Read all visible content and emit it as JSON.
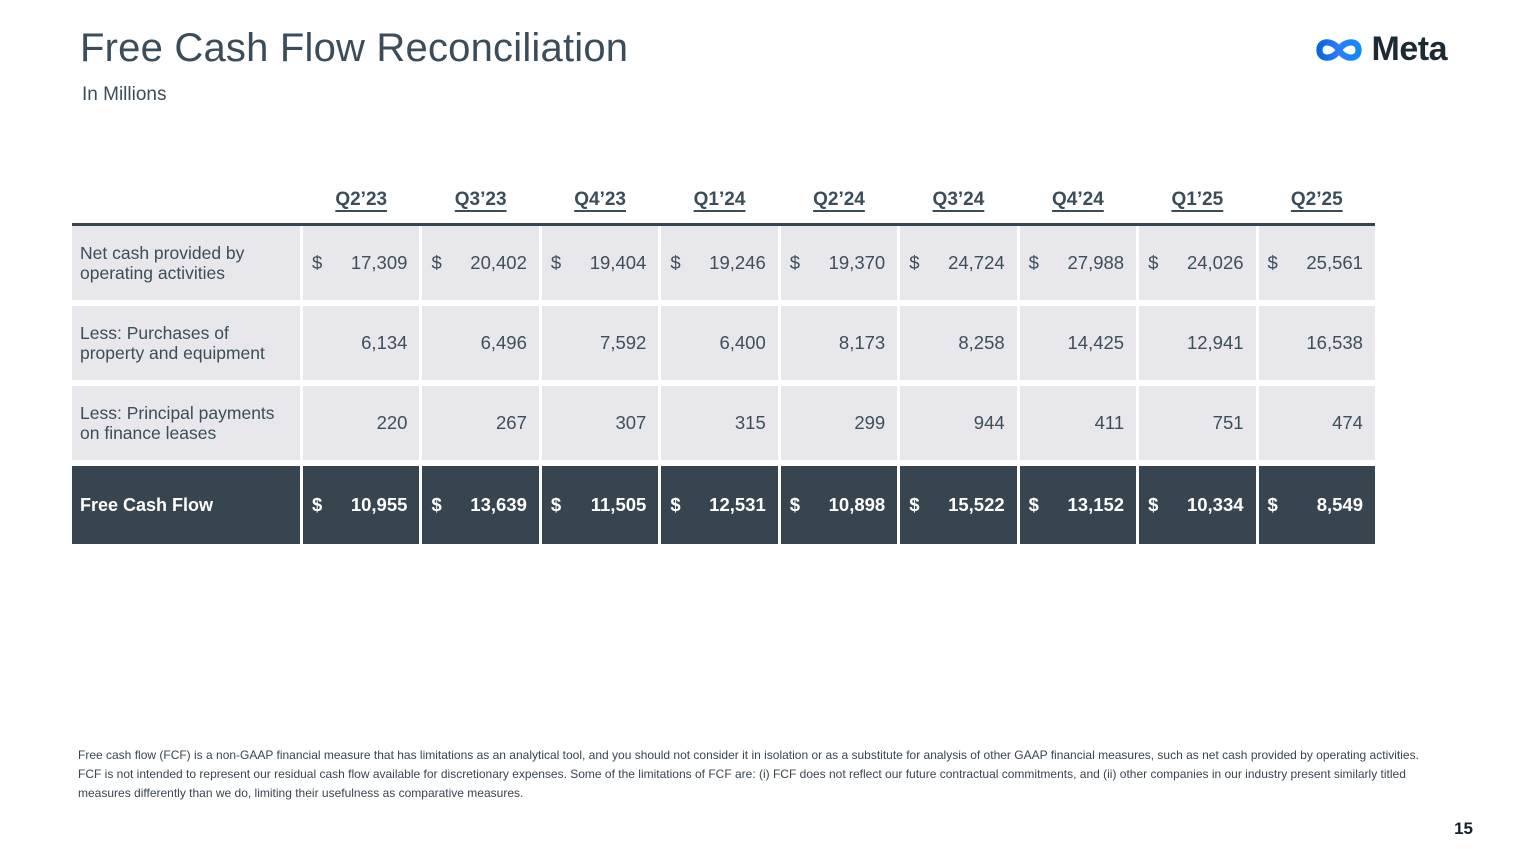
{
  "slide": {
    "title": "Free Cash Flow Reconciliation",
    "subtitle": "In Millions",
    "logo_text": "Meta",
    "page_number": "15"
  },
  "table": {
    "quarters": [
      "Q2’23",
      "Q3’23",
      "Q4’23",
      "Q1’24",
      "Q2’24",
      "Q3’24",
      "Q4’24",
      "Q1’25",
      "Q2’25"
    ],
    "currency_symbol": "$",
    "rows": [
      {
        "label": "Net cash provided by operating activities",
        "dollar_sign": true,
        "highlight": false,
        "values": [
          "17,309",
          "20,402",
          "19,404",
          "19,246",
          "19,370",
          "24,724",
          "27,988",
          "24,026",
          "25,561"
        ]
      },
      {
        "label": "Less: Purchases of property and equipment",
        "dollar_sign": false,
        "highlight": false,
        "values": [
          "6,134",
          "6,496",
          "7,592",
          "6,400",
          "8,173",
          "8,258",
          "14,425",
          "12,941",
          "16,538"
        ]
      },
      {
        "label": "Less: Principal payments on finance leases",
        "dollar_sign": false,
        "highlight": false,
        "values": [
          "220",
          "267",
          "307",
          "315",
          "299",
          "944",
          "411",
          "751",
          "474"
        ]
      },
      {
        "label": "Free Cash Flow",
        "dollar_sign": true,
        "highlight": true,
        "values": [
          "10,955",
          "13,639",
          "11,505",
          "12,531",
          "10,898",
          "15,522",
          "13,152",
          "10,334",
          "8,549"
        ]
      }
    ]
  },
  "footnote": "Free cash flow (FCF) is a non-GAAP financial measure that has limitations as an analytical tool, and you should not consider it in isolation or as a substitute for analysis of other GAAP financial measures, such as net cash provided by operating activities. FCF is not intended to represent our residual cash flow available for discretionary expenses. Some of the limitations of FCF are: (i) FCF does not reflect our future contractual commitments, and (ii) other companies in our industry present similarly titled measures differently than we do, limiting their usefulness as comparative measures.",
  "colors": {
    "title_text": "#3c4d5a",
    "table_text": "#3e4e5c",
    "row_background": "#e8e8ec",
    "highlight_background": "#36454f",
    "highlight_text": "#ffffff",
    "logo_blue_start": "#0668e1",
    "logo_blue_end": "#0d8bf8",
    "logo_text_color": "#1c2b33"
  }
}
